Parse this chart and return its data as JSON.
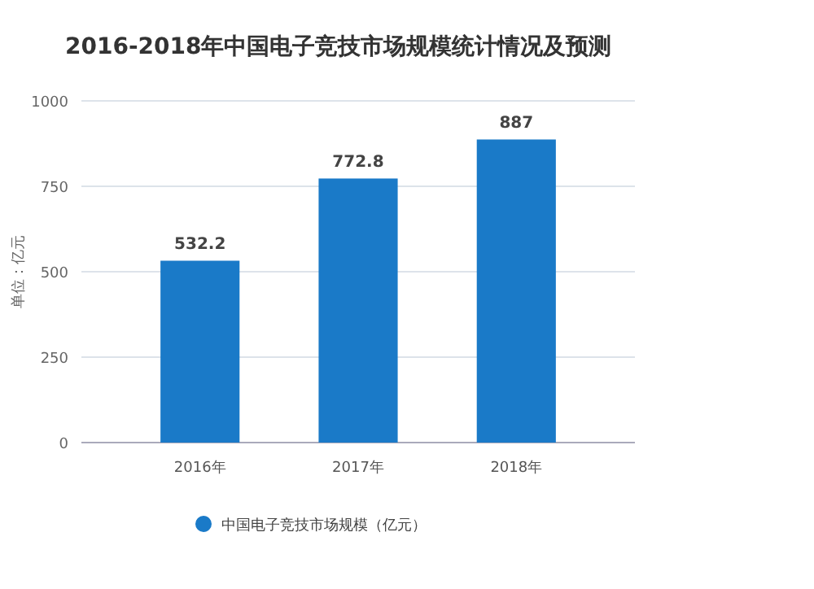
{
  "chart_data": {
    "type": "bar",
    "title": "2016-2018年中国电子竞技市场规模统计情况及预测",
    "ylabel": "单位：亿元",
    "categories": [
      "2016年",
      "2017年",
      "2018年"
    ],
    "series": [
      {
        "name": "中国电子竞技市场规模（亿元）",
        "color": "#1a7ac8",
        "values": [
          532.2,
          772.8,
          887
        ]
      }
    ],
    "ylim": [
      0,
      1000
    ],
    "yticks": [
      0,
      250,
      500,
      750,
      1000
    ],
    "grid": "y",
    "legend": "bottom",
    "data_labels": true
  }
}
